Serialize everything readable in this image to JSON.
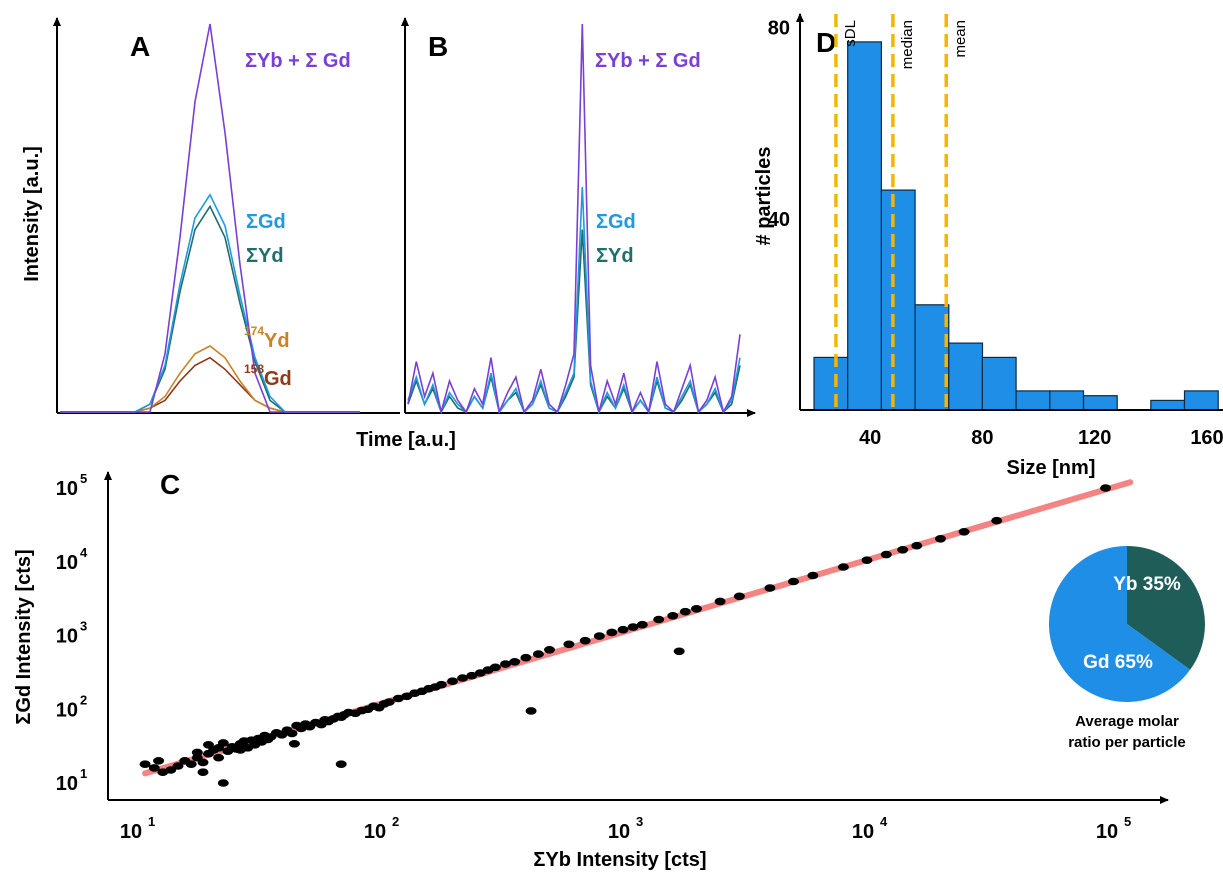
{
  "figure": {
    "panel_labels": {
      "a": "A",
      "b": "B",
      "c": "C",
      "d": "D"
    },
    "colors": {
      "sum": "#7a3fd4",
      "gd": "#1f9ae0",
      "yb": "#1f6f6a",
      "yb174": "#c8832a",
      "gd158": "#8b3a1a",
      "bar_fill": "#1f8ee6",
      "threshold_line": "#f7b500",
      "fit_line": "#f05a5a",
      "scatter_point": "#000000",
      "pie_yb": "#1f5d58",
      "pie_gd": "#1f8ee6"
    }
  },
  "panel_ab": {
    "ylabel": "Intensity [a.u.]",
    "xlabel": "Time [a.u.]",
    "labels_a": {
      "sum": "ΣYb + Σ Gd",
      "gd": "ΣGd",
      "yb": "ΣYd",
      "yb174_sup": "174",
      "yb174": "Yd",
      "gd158_sup": "158",
      "gd158": "Gd"
    },
    "labels_b": {
      "sum": "ΣYb + Σ Gd",
      "gd": "ΣGd",
      "yb": "ΣYd"
    }
  },
  "panel_c": {
    "xlabel": "ΣYb Intensity [cts]",
    "ylabel": "ΣGd Intensity [cts]",
    "x_ticks": [
      "10",
      "10",
      "10",
      "10",
      "10"
    ],
    "x_tick_exps": [
      "1",
      "2",
      "3",
      "4",
      "5"
    ],
    "y_ticks": [
      "10",
      "10",
      "10",
      "10",
      "10"
    ],
    "y_tick_exps": [
      "1",
      "2",
      "3",
      "4",
      "5"
    ],
    "pie": {
      "yb_label": "Yb 35%",
      "gd_label": "Gd 65%",
      "caption_line1": "Average molar",
      "caption_line2": "ratio per particle"
    }
  },
  "panel_d": {
    "xlabel": "Size [nm]",
    "ylabel": "# particles",
    "x_ticks": [
      "40",
      "80",
      "120",
      "160"
    ],
    "y_ticks": [
      "40",
      "80"
    ],
    "threshold_labels": {
      "sdl": "sDL",
      "median": "median",
      "mean": "mean"
    }
  },
  "chart_data": [
    {
      "type": "line",
      "panel": "A",
      "xlabel": "Time [a.u.]",
      "ylabel": "Intensity [a.u.]",
      "x": [
        0.0,
        0.05,
        0.1,
        0.15,
        0.2,
        0.25,
        0.3,
        0.35,
        0.4,
        0.45,
        0.5,
        0.55,
        0.6,
        0.65,
        0.7,
        0.75,
        0.8,
        0.85,
        0.9,
        0.95,
        1.0
      ],
      "series": [
        {
          "name": "ΣYb + Σ Gd",
          "values": [
            0,
            0,
            0,
            0,
            0,
            0,
            0,
            0.15,
            0.45,
            0.8,
            1.0,
            0.72,
            0.38,
            0.1,
            0,
            0,
            0,
            0,
            0,
            0,
            0
          ]
        },
        {
          "name": "ΣGd",
          "values": [
            0,
            0,
            0,
            0,
            0,
            0,
            0.02,
            0.12,
            0.33,
            0.5,
            0.56,
            0.48,
            0.3,
            0.14,
            0.04,
            0,
            0,
            0,
            0,
            0,
            0
          ]
        },
        {
          "name": "ΣYd",
          "values": [
            0,
            0,
            0,
            0,
            0,
            0,
            0.02,
            0.11,
            0.31,
            0.47,
            0.53,
            0.45,
            0.28,
            0.13,
            0.03,
            0,
            0,
            0,
            0,
            0,
            0
          ]
        },
        {
          "name": "174Yd",
          "values": [
            0,
            0,
            0,
            0,
            0,
            0,
            0.01,
            0.04,
            0.1,
            0.15,
            0.17,
            0.14,
            0.08,
            0.03,
            0.01,
            0,
            0,
            0,
            0,
            0,
            0
          ]
        },
        {
          "name": "158Gd",
          "values": [
            0,
            0,
            0,
            0,
            0,
            0,
            0.01,
            0.03,
            0.08,
            0.12,
            0.14,
            0.11,
            0.07,
            0.03,
            0.01,
            0,
            0,
            0,
            0,
            0,
            0
          ]
        }
      ]
    },
    {
      "type": "line",
      "panel": "B",
      "xlabel": "Time [a.u.]",
      "x": [
        0.0,
        0.025,
        0.05,
        0.075,
        0.1,
        0.125,
        0.15,
        0.175,
        0.2,
        0.225,
        0.25,
        0.275,
        0.3,
        0.325,
        0.35,
        0.375,
        0.4,
        0.425,
        0.45,
        0.475,
        0.5,
        0.525,
        0.55,
        0.575,
        0.6,
        0.625,
        0.65,
        0.675,
        0.7,
        0.725,
        0.75,
        0.775,
        0.8,
        0.825,
        0.85,
        0.875,
        0.9,
        0.925,
        0.95,
        0.975,
        1.0
      ],
      "series": [
        {
          "name": "ΣYb + Σ Gd",
          "values": [
            0.02,
            0.13,
            0.04,
            0.1,
            0.0,
            0.08,
            0.03,
            0.0,
            0.06,
            0.02,
            0.14,
            0.0,
            0.05,
            0.09,
            0.0,
            0.03,
            0.11,
            0.02,
            0.0,
            0.07,
            0.15,
            1.0,
            0.12,
            0.0,
            0.08,
            0.02,
            0.1,
            0.0,
            0.05,
            0.0,
            0.13,
            0.02,
            0.0,
            0.06,
            0.12,
            0.0,
            0.03,
            0.09,
            0.0,
            0.04,
            0.2
          ]
        },
        {
          "name": "ΣGd",
          "values": [
            0.03,
            0.09,
            0.02,
            0.07,
            0.0,
            0.05,
            0.02,
            0.0,
            0.04,
            0.01,
            0.1,
            0.0,
            0.03,
            0.06,
            0.0,
            0.02,
            0.08,
            0.01,
            0.0,
            0.05,
            0.1,
            0.58,
            0.08,
            0.0,
            0.05,
            0.01,
            0.07,
            0.0,
            0.03,
            0.0,
            0.09,
            0.01,
            0.0,
            0.04,
            0.08,
            0.0,
            0.02,
            0.06,
            0.0,
            0.03,
            0.14
          ]
        },
        {
          "name": "ΣYd",
          "values": [
            0.02,
            0.08,
            0.02,
            0.06,
            0.0,
            0.04,
            0.01,
            0.0,
            0.04,
            0.01,
            0.09,
            0.0,
            0.03,
            0.05,
            0.0,
            0.02,
            0.07,
            0.01,
            0.0,
            0.04,
            0.09,
            0.47,
            0.07,
            0.0,
            0.04,
            0.01,
            0.06,
            0.0,
            0.03,
            0.0,
            0.08,
            0.01,
            0.0,
            0.03,
            0.07,
            0.0,
            0.02,
            0.05,
            0.0,
            0.02,
            0.12
          ]
        }
      ]
    },
    {
      "type": "bar",
      "panel": "D",
      "xlabel": "Size [nm]",
      "ylabel": "# particles",
      "xlim": [
        15,
        165
      ],
      "ylim": [
        0,
        82
      ],
      "bin_edges": [
        20,
        32,
        44,
        56,
        68,
        80,
        92,
        104,
        116,
        128,
        140,
        152,
        164
      ],
      "values": [
        11,
        77,
        46,
        22,
        14,
        11,
        4,
        4,
        3,
        0,
        2,
        4,
        1
      ],
      "thresholds": [
        {
          "label": "sDL",
          "x": 27.8
        },
        {
          "label": "median",
          "x": 48.1
        },
        {
          "label": "mean",
          "x": 67.1
        }
      ]
    },
    {
      "type": "scatter",
      "panel": "C",
      "xlabel": "ΣYb Intensity [cts]",
      "ylabel": "ΣGd Intensity [cts]",
      "scale": "log-log",
      "xlim": [
        7,
        150000
      ],
      "ylim": [
        7,
        130000
      ],
      "x": [
        11,
        12,
        12.5,
        13,
        14,
        15,
        16,
        17,
        18,
        18,
        19,
        20,
        20,
        21,
        22,
        22,
        23,
        24,
        25,
        26,
        27,
        28,
        29,
        30,
        31,
        32,
        33,
        34,
        35,
        36,
        38,
        40,
        42,
        44,
        46,
        48,
        50,
        52,
        55,
        58,
        60,
        62,
        65,
        68,
        70,
        72,
        75,
        80,
        85,
        90,
        95,
        100,
        105,
        110,
        120,
        130,
        140,
        150,
        160,
        170,
        180,
        200,
        220,
        240,
        260,
        280,
        300,
        330,
        360,
        400,
        450,
        500,
        600,
        700,
        800,
        900,
        1000,
        1100,
        1200,
        1400,
        1600,
        1800,
        2000,
        2500,
        3000,
        4000,
        5000,
        6000,
        8000,
        10000,
        12000,
        14000,
        16000,
        20000,
        25000,
        34000,
        95000,
        420,
        1700,
        70,
        23,
        19,
        27,
        45,
        33
      ],
      "y": [
        18,
        16,
        20,
        14,
        15,
        17,
        20,
        18,
        22,
        26,
        19,
        25,
        33,
        28,
        22,
        30,
        35,
        27,
        31,
        29,
        34,
        37,
        30,
        38,
        33,
        40,
        36,
        44,
        39,
        42,
        48,
        45,
        52,
        47,
        60,
        55,
        63,
        58,
        66,
        62,
        72,
        68,
        74,
        80,
        78,
        84,
        90,
        88,
        96,
        100,
        110,
        105,
        118,
        125,
        140,
        150,
        165,
        175,
        190,
        200,
        215,
        240,
        265,
        285,
        310,
        340,
        370,
        410,
        440,
        500,
        560,
        640,
        760,
        850,
        980,
        1100,
        1200,
        1300,
        1400,
        1650,
        1850,
        2100,
        2300,
        2900,
        3400,
        4400,
        5400,
        6500,
        8500,
        10500,
        12500,
        14500,
        16500,
        20500,
        25500,
        36000,
        100000,
        95,
        610,
        18,
        10,
        14,
        28,
        34,
        40
      ]
    },
    {
      "type": "pie",
      "panel": "C-inset",
      "categories": [
        "Yb",
        "Gd"
      ],
      "values": [
        35,
        65
      ]
    }
  ]
}
